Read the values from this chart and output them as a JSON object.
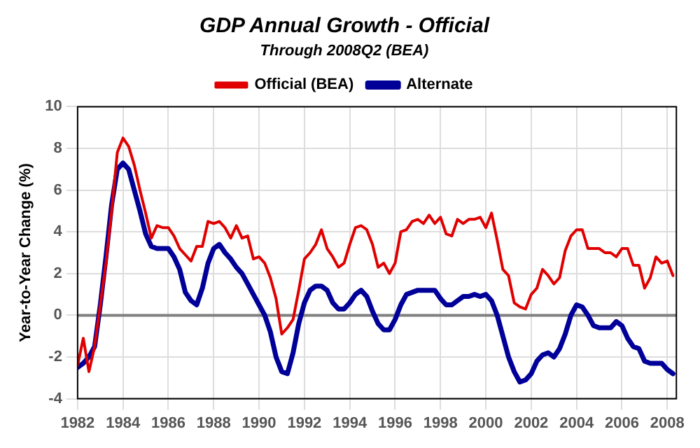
{
  "chart_data": {
    "type": "line",
    "title": "GDP Annual Growth - Official",
    "subtitle": "Through 2008Q2 (BEA)",
    "ylabel": "Year-to-Year Change (%)",
    "x": [
      1982,
      1982.25,
      1982.5,
      1982.75,
      1983,
      1983.25,
      1983.5,
      1983.75,
      1984,
      1984.25,
      1984.5,
      1984.75,
      1985,
      1985.25,
      1985.5,
      1985.75,
      1986,
      1986.25,
      1986.5,
      1986.75,
      1987,
      1987.25,
      1987.5,
      1987.75,
      1988,
      1988.25,
      1988.5,
      1988.75,
      1989,
      1989.25,
      1989.5,
      1989.75,
      1990,
      1990.25,
      1990.5,
      1990.75,
      1991,
      1991.25,
      1991.5,
      1991.75,
      1992,
      1992.25,
      1992.5,
      1992.75,
      1993,
      1993.25,
      1993.5,
      1993.75,
      1994,
      1994.25,
      1994.5,
      1994.75,
      1995,
      1995.25,
      1995.5,
      1995.75,
      1996,
      1996.25,
      1996.5,
      1996.75,
      1997,
      1997.25,
      1997.5,
      1997.75,
      1998,
      1998.25,
      1998.5,
      1998.75,
      1999,
      1999.25,
      1999.5,
      1999.75,
      2000,
      2000.25,
      2000.5,
      2000.75,
      2001,
      2001.25,
      2001.5,
      2001.75,
      2002,
      2002.25,
      2002.5,
      2002.75,
      2003,
      2003.25,
      2003.5,
      2003.75,
      2004,
      2004.25,
      2004.5,
      2004.75,
      2005,
      2005.25,
      2005.5,
      2005.75,
      2006,
      2006.25,
      2006.5,
      2006.75,
      2007,
      2007.25,
      2007.5,
      2007.75,
      2008,
      2008.25
    ],
    "series": [
      {
        "name": "Official (BEA)",
        "color": "#e00000",
        "values": [
          -2.4,
          -1.1,
          -2.7,
          -1.5,
          0.5,
          2.5,
          5.0,
          7.8,
          8.5,
          8.1,
          7.2,
          6.0,
          4.9,
          3.7,
          4.3,
          4.2,
          4.2,
          3.8,
          3.2,
          2.9,
          2.6,
          3.3,
          3.3,
          4.5,
          4.4,
          4.5,
          4.2,
          3.7,
          4.3,
          3.7,
          3.8,
          2.7,
          2.8,
          2.5,
          1.8,
          0.8,
          -0.9,
          -0.6,
          -0.2,
          1.2,
          2.7,
          3.0,
          3.4,
          4.1,
          3.2,
          2.8,
          2.3,
          2.5,
          3.4,
          4.2,
          4.3,
          4.1,
          3.4,
          2.3,
          2.5,
          2.0,
          2.5,
          4.0,
          4.1,
          4.5,
          4.6,
          4.4,
          4.8,
          4.4,
          4.7,
          3.9,
          3.8,
          4.6,
          4.4,
          4.6,
          4.6,
          4.7,
          4.2,
          4.9,
          3.6,
          2.2,
          1.9,
          0.6,
          0.4,
          0.3,
          1.0,
          1.3,
          2.2,
          1.9,
          1.5,
          1.8,
          3.1,
          3.8,
          4.1,
          4.1,
          3.2,
          3.2,
          3.2,
          3.0,
          3.0,
          2.8,
          3.2,
          3.2,
          2.4,
          2.4,
          1.3,
          1.8,
          2.8,
          2.5,
          2.6,
          1.9
        ]
      },
      {
        "name": "Alternate",
        "color": "#000099",
        "values": [
          -2.5,
          -2.3,
          -2.0,
          -1.5,
          0.5,
          2.8,
          5.3,
          7.0,
          7.3,
          7.0,
          6.0,
          5.0,
          3.9,
          3.3,
          3.2,
          3.2,
          3.2,
          2.8,
          2.2,
          1.1,
          0.7,
          0.5,
          1.3,
          2.5,
          3.2,
          3.4,
          3.0,
          2.7,
          2.3,
          2.0,
          1.5,
          1.0,
          0.5,
          0.0,
          -0.8,
          -2.0,
          -2.7,
          -2.8,
          -1.8,
          -0.4,
          0.6,
          1.2,
          1.4,
          1.4,
          1.2,
          0.6,
          0.3,
          0.3,
          0.6,
          1.0,
          1.2,
          0.9,
          0.2,
          -0.4,
          -0.7,
          -0.7,
          -0.2,
          0.5,
          1.0,
          1.1,
          1.2,
          1.2,
          1.2,
          1.2,
          0.8,
          0.5,
          0.5,
          0.7,
          0.9,
          0.9,
          1.0,
          0.9,
          1.0,
          0.7,
          0.0,
          -1.0,
          -2.0,
          -2.7,
          -3.2,
          -3.1,
          -2.8,
          -2.2,
          -1.9,
          -1.8,
          -2.0,
          -1.6,
          -0.9,
          0.0,
          0.5,
          0.4,
          0.0,
          -0.5,
          -0.6,
          -0.6,
          -0.6,
          -0.3,
          -0.5,
          -1.1,
          -1.5,
          -1.6,
          -2.2,
          -2.3,
          -2.3,
          -2.3,
          -2.6,
          -2.8
        ]
      }
    ],
    "xlim": [
      1982,
      2008.4
    ],
    "xticks": [
      1982,
      1984,
      1986,
      1988,
      1990,
      1992,
      1994,
      1996,
      1998,
      2000,
      2002,
      2004,
      2006,
      2008
    ],
    "ylim": [
      -4,
      10
    ],
    "yticks": [
      -4,
      -2,
      0,
      2,
      4,
      6,
      8,
      10
    ],
    "ref_lines": [
      {
        "axis": "y",
        "value": 0,
        "color": "#808080"
      }
    ],
    "grid": true,
    "legend": "top",
    "marker": "none",
    "line_style": "solid"
  }
}
